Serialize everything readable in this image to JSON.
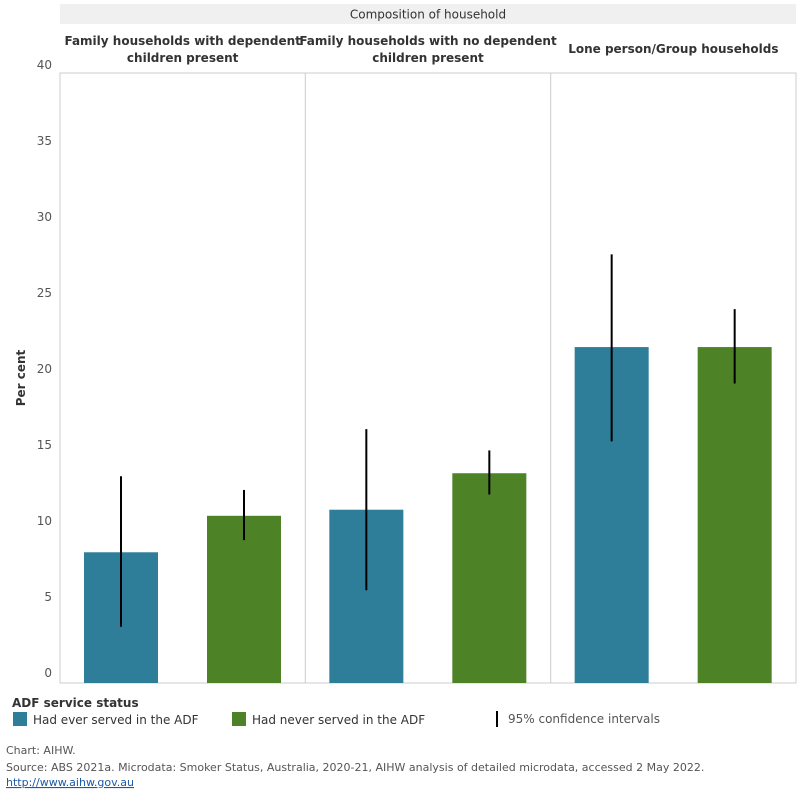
{
  "chart_data": {
    "type": "bar",
    "header": "Composition of household",
    "categories": [
      "Family households with dependent children present",
      "Family households with no dependent children present",
      "Lone person/Group households"
    ],
    "category_lines": [
      [
        "Family households with dependent",
        "children present"
      ],
      [
        "Family households with no dependent",
        "children present"
      ],
      [
        "Lone person/Group households"
      ]
    ],
    "y_label": "Per cent",
    "ylim": [
      0,
      40
    ],
    "yticks": [
      0,
      5,
      10,
      15,
      20,
      25,
      30,
      35,
      40
    ],
    "grid": false,
    "legend_title": "ADF service status",
    "ci_label": "95% confidence intervals",
    "series": [
      {
        "name": "Had ever served in the ADF",
        "color": "#2e7d99",
        "values": [
          8.6,
          11.4,
          22.1
        ],
        "ci_low": [
          3.7,
          6.1,
          15.9
        ],
        "ci_high": [
          13.6,
          16.7,
          28.2
        ]
      },
      {
        "name": "Had never served in the ADF",
        "color": "#4d8227",
        "values": [
          11.0,
          13.8,
          22.1
        ],
        "ci_low": [
          9.4,
          12.4,
          19.7
        ],
        "ci_high": [
          12.7,
          15.3,
          24.6
        ]
      }
    ],
    "notes": [
      "Chart: AIHW.",
      "Source: ABS 2021a. Microdata: Smoker Status, Australia, 2020-21, AIHW analysis of detailed microdata, accessed 2 May 2022."
    ],
    "link": "http://www.aihw.gov.au"
  }
}
